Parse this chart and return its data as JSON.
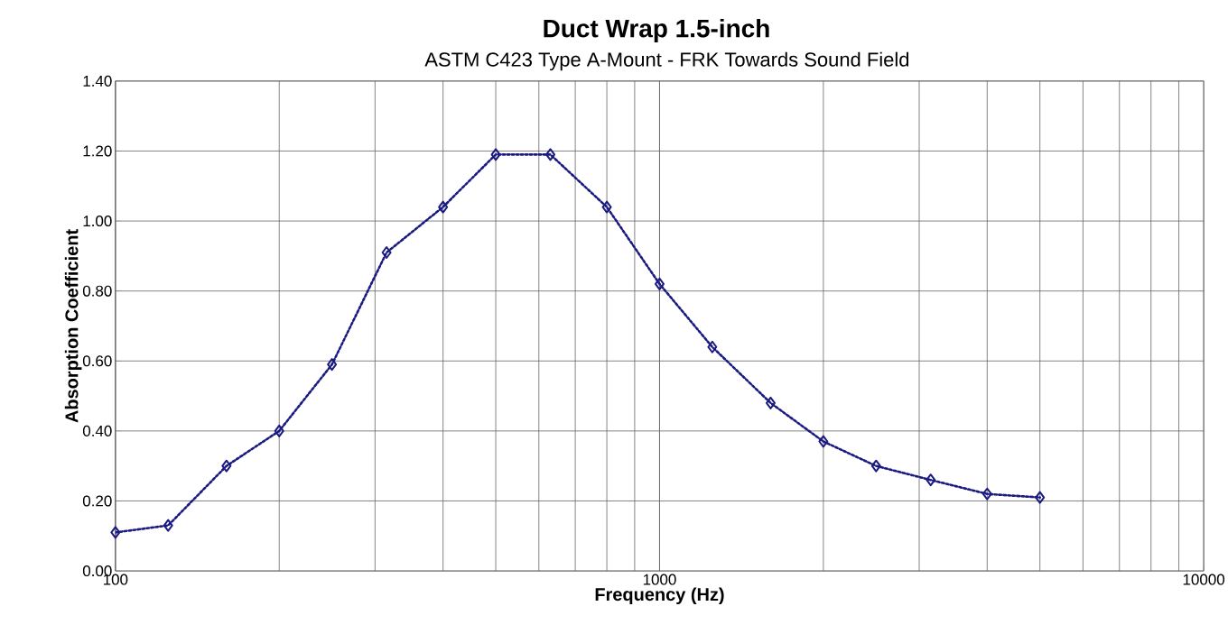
{
  "chart_data": {
    "type": "line",
    "title": "Duct Wrap  1.5-inch",
    "subtitle": "ASTM C423 Type A-Mount - FRK Towards Sound Field",
    "xlabel": "Frequency (Hz)",
    "ylabel": "Absorption Coefficient",
    "x": [
      100,
      125,
      160,
      200,
      250,
      315,
      400,
      500,
      630,
      800,
      1000,
      1250,
      1600,
      2000,
      2500,
      3150,
      4000,
      5000
    ],
    "series": [
      {
        "color": "#1a1a80",
        "values": [
          0.11,
          0.13,
          0.3,
          0.4,
          0.59,
          0.91,
          1.04,
          1.19,
          1.19,
          1.04,
          0.82,
          0.64,
          0.48,
          0.37,
          0.3,
          0.26,
          0.22,
          0.21
        ]
      }
    ],
    "log": "x",
    "xlim": [
      100,
      10000
    ],
    "xticks": [
      100,
      1000,
      10000
    ],
    "ylim": [
      0,
      1.4
    ],
    "yticks": [
      {
        "value": 0,
        "label": "0.00"
      },
      {
        "value": 0.2,
        "label": "0.20"
      },
      {
        "value": 0.4,
        "label": "0.40"
      },
      {
        "value": 0.6,
        "label": "0.60"
      },
      {
        "value": 0.8,
        "label": "0.80"
      },
      {
        "value": 1.0,
        "label": "1.00"
      },
      {
        "value": 1.2,
        "label": "1.20"
      },
      {
        "value": 1.4,
        "label": "1.40"
      }
    ],
    "grid": true,
    "marker": "diamond",
    "line_style": "dotted"
  }
}
